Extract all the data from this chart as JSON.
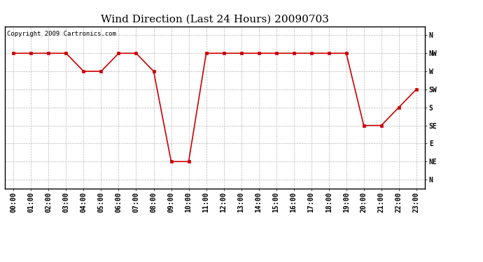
{
  "title": "Wind Direction (Last 24 Hours) 20090703",
  "copyright": "Copyright 2009 Cartronics.com",
  "x_labels": [
    "00:00",
    "01:00",
    "02:00",
    "03:00",
    "04:00",
    "05:00",
    "06:00",
    "07:00",
    "08:00",
    "09:00",
    "10:00",
    "11:00",
    "12:00",
    "13:00",
    "14:00",
    "15:00",
    "16:00",
    "17:00",
    "18:00",
    "19:00",
    "20:00",
    "21:00",
    "22:00",
    "23:00"
  ],
  "y_labels": [
    "N",
    "NW",
    "W",
    "SW",
    "S",
    "SE",
    "E",
    "NE",
    "N"
  ],
  "y_values": [
    8,
    7,
    6,
    5,
    4,
    3,
    2,
    1,
    0
  ],
  "hours": [
    0,
    1,
    2,
    3,
    4,
    5,
    6,
    7,
    8,
    9,
    10,
    11,
    12,
    13,
    14,
    15,
    16,
    17,
    18,
    19,
    20,
    21,
    22,
    23
  ],
  "wind_data": [
    7,
    7,
    7,
    7,
    6,
    6,
    7,
    7,
    6,
    1,
    1,
    7,
    7,
    7,
    7,
    7,
    7,
    7,
    7,
    7,
    3,
    3,
    4,
    5
  ],
  "line_color": "#cc0000",
  "marker": "s",
  "marker_size": 3,
  "marker_color": "#cc0000",
  "background_color": "#ffffff",
  "plot_bg_color": "#ffffff",
  "grid_color": "#999999",
  "grid_style": "--",
  "title_fontsize": 11,
  "tick_fontsize": 7,
  "copyright_fontsize": 6.5
}
